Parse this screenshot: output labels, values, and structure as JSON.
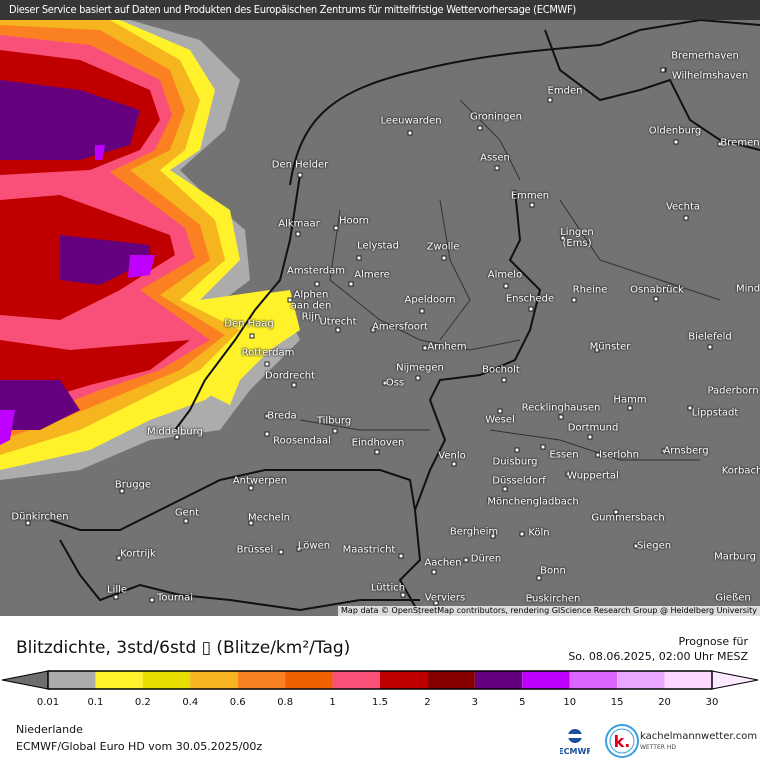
{
  "banner": "Dieser Service basiert auf Daten und Produkten des Europäischen Zentrums für mittelfristige Wettervorhersage (ECMWF)",
  "attribution": "Map data © OpenStreetMap contributors, rendering GIScience Research Group @ Heidelberg University",
  "cities": [
    "Bremerhaven",
    "Wilhelmshaven",
    "Emden",
    "Leeuwarden",
    "Groningen",
    "Den Helder",
    "Assen",
    "Oldenburg",
    "Bremen",
    "Emmen",
    "Vechta",
    "Alkmaar",
    "Hoorn",
    "Lingen\n(Ems)",
    "Lelystad",
    "Zwolle",
    "Amsterdam",
    "Almere",
    "Almelo",
    "Alphen\naan den\nRijn",
    "Rheine",
    "Osnabrück",
    "Mind",
    "Apeldoorn",
    "Enschede",
    "Den Haag",
    "Utrecht",
    "Amersfoort",
    "Bielefeld",
    "Arnhem",
    "Münster",
    "Rotterdam",
    "Nijmegen",
    "Bocholt",
    "Dordrecht",
    "Oss",
    "Recklinghausen",
    "Hamm",
    "Paderborn",
    "Lippstadt",
    "Breda",
    "Tilburg",
    "Wesel",
    "Dortmund",
    "Middelburg",
    "Roosendaal",
    "Eindhoven",
    "Arnsberg",
    "Venlo",
    "Essen",
    "Iserlohn",
    "Duisburg",
    "Korbach",
    "Wuppertal",
    "Brugge",
    "Antwerpen",
    "Düsseldorf",
    "Mönchengladbach",
    "Dünkirchen",
    "Gent",
    "Mecheln",
    "Gummersbach",
    "Bergheim",
    "Köln",
    "Kortrijk",
    "Brüssel",
    "Löwen",
    "Maastricht",
    "Siegen",
    "Düren",
    "Marburg",
    "Aachen",
    "Bonn",
    "Lille",
    "Tournai",
    "Lüttich",
    "Verviers",
    "Euskirchen",
    "Gießen"
  ],
  "legend": {
    "title": "Blitzdichte, 3std/6std ▯ (Blitze/km²/Tag)",
    "prognose_label": "Prognose für",
    "prognose_time": "So. 08.06.2025, 02:00 Uhr MESZ",
    "ticks": [
      "0.01",
      "0.1",
      "0.2",
      "0.4",
      "0.6",
      "0.8",
      "1",
      "1.5",
      "2",
      "3",
      "5",
      "10",
      "15",
      "20",
      "30"
    ],
    "colors": [
      "#acacac",
      "#fff22b",
      "#e8dc00",
      "#f6b51e",
      "#fb8021",
      "#ef6000",
      "#f9507a",
      "#c00000",
      "#870000",
      "#65007e",
      "#c000ff",
      "#dc64ff",
      "#e8a8ff",
      "#fcd7ff"
    ],
    "below_color": "#6e6e6e",
    "above_color": "#fce8ff"
  },
  "footer": {
    "region": "Niederlande",
    "model": "ECMWF/Global Euro HD vom  30.05.2025/00z"
  },
  "logos": {
    "ecmwf": "ECMWF",
    "kachelmann": "kachelmannwetter.com",
    "kachelmann_sub": "WETTER HD",
    "kachelmann_letter": "k."
  }
}
